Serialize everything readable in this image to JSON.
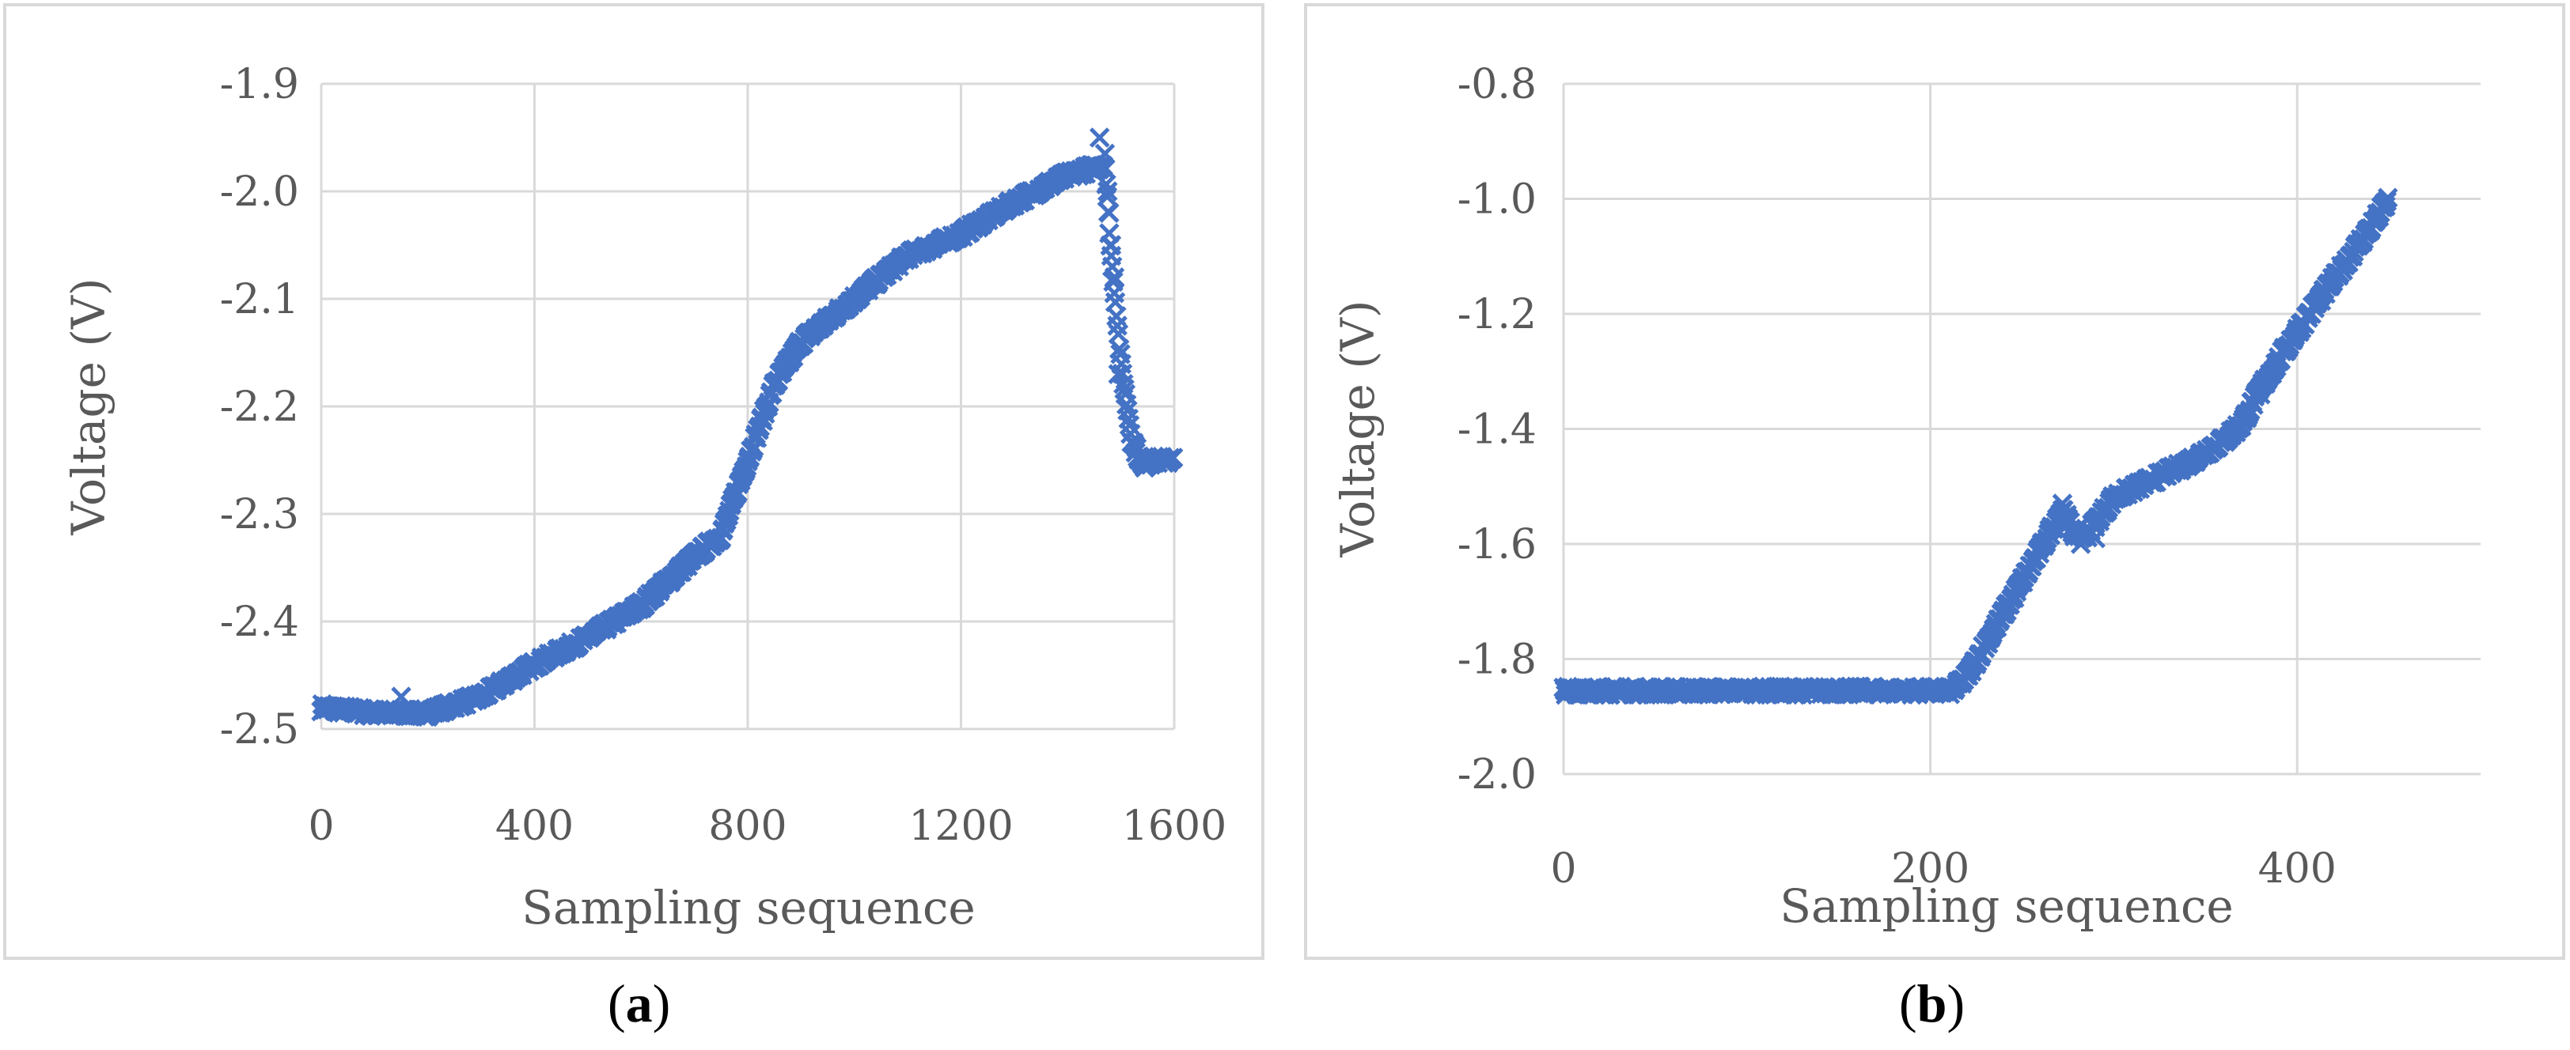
{
  "panels": {
    "a": {
      "label_open": "(",
      "label_letter": "a",
      "label_close": ")"
    },
    "b": {
      "label_open": "(",
      "label_letter": "b",
      "label_close": ")"
    }
  },
  "colors": {
    "marker": "#4472c4",
    "grid": "#d9d9d9",
    "axis_text": "#595959"
  },
  "chart_data": [
    {
      "type": "scatter",
      "marker": "x",
      "xlabel": "Sampling sequence",
      "ylabel": "Voltage (V)",
      "xlim": [
        0,
        1600
      ],
      "ylim": [
        -2.5,
        -1.9
      ],
      "x_ticks": [
        0,
        400,
        800,
        1200,
        1600
      ],
      "x_tick_labels": [
        "0",
        "400",
        "800",
        "1200",
        "1600"
      ],
      "y_ticks": [
        -2.5,
        -2.4,
        -2.3,
        -2.2,
        -2.1,
        -2.0,
        -1.9
      ],
      "y_tick_labels": [
        "-2.5",
        "-2.4",
        "-2.3",
        "-2.2",
        "-2.1",
        "-2.0",
        "-1.9"
      ],
      "grid": true,
      "curve_x": [
        0,
        100,
        200,
        300,
        400,
        500,
        600,
        700,
        750,
        800,
        850,
        900,
        1000,
        1100,
        1200,
        1300,
        1400,
        1470,
        1480,
        1500,
        1520,
        1540,
        1560,
        1600
      ],
      "curve_y": [
        -2.48,
        -2.485,
        -2.485,
        -2.47,
        -2.44,
        -2.415,
        -2.385,
        -2.34,
        -2.32,
        -2.25,
        -2.18,
        -2.14,
        -2.1,
        -2.06,
        -2.04,
        -2.01,
        -1.985,
        -1.975,
        -2.05,
        -2.16,
        -2.23,
        -2.255,
        -2.25,
        -2.25
      ],
      "outliers": [
        [
          150,
          -2.47
        ],
        [
          1460,
          -1.95
        ],
        [
          1470,
          -1.965
        ],
        [
          1475,
          -2.0
        ],
        [
          1478,
          -2.02
        ],
        [
          1482,
          -2.05
        ],
        [
          1488,
          -2.08
        ],
        [
          1495,
          -2.17
        ]
      ]
    },
    {
      "type": "scatter",
      "marker": "x",
      "xlabel": "Sampling sequence",
      "ylabel": "Voltage (V)",
      "xlim": [
        0,
        500
      ],
      "ylim": [
        -2.0,
        -0.8
      ],
      "x_ticks": [
        0,
        200,
        400
      ],
      "x_tick_labels": [
        "0",
        "200",
        "400"
      ],
      "y_ticks": [
        -2.0,
        -1.8,
        -1.6,
        -1.4,
        -1.2,
        -1.0,
        -0.8
      ],
      "y_tick_labels": [
        "-2.0",
        "-1.8",
        "-1.6",
        "-1.4",
        "-1.2",
        "-1.0",
        "-0.8"
      ],
      "grid": true,
      "curve_x": [
        0,
        100,
        200,
        212,
        220,
        240,
        260,
        272,
        278,
        285,
        300,
        320,
        340,
        360,
        370,
        380,
        400,
        420,
        440,
        450
      ],
      "curve_y": [
        -1.855,
        -1.855,
        -1.855,
        -1.855,
        -1.83,
        -1.72,
        -1.61,
        -1.54,
        -1.58,
        -1.585,
        -1.52,
        -1.49,
        -1.46,
        -1.42,
        -1.39,
        -1.33,
        -1.23,
        -1.14,
        -1.05,
        -1.0
      ],
      "outliers": [
        [
          272,
          -1.53
        ],
        [
          282,
          -1.6
        ],
        [
          290,
          -1.59
        ],
        [
          380,
          -1.34
        ]
      ]
    }
  ]
}
